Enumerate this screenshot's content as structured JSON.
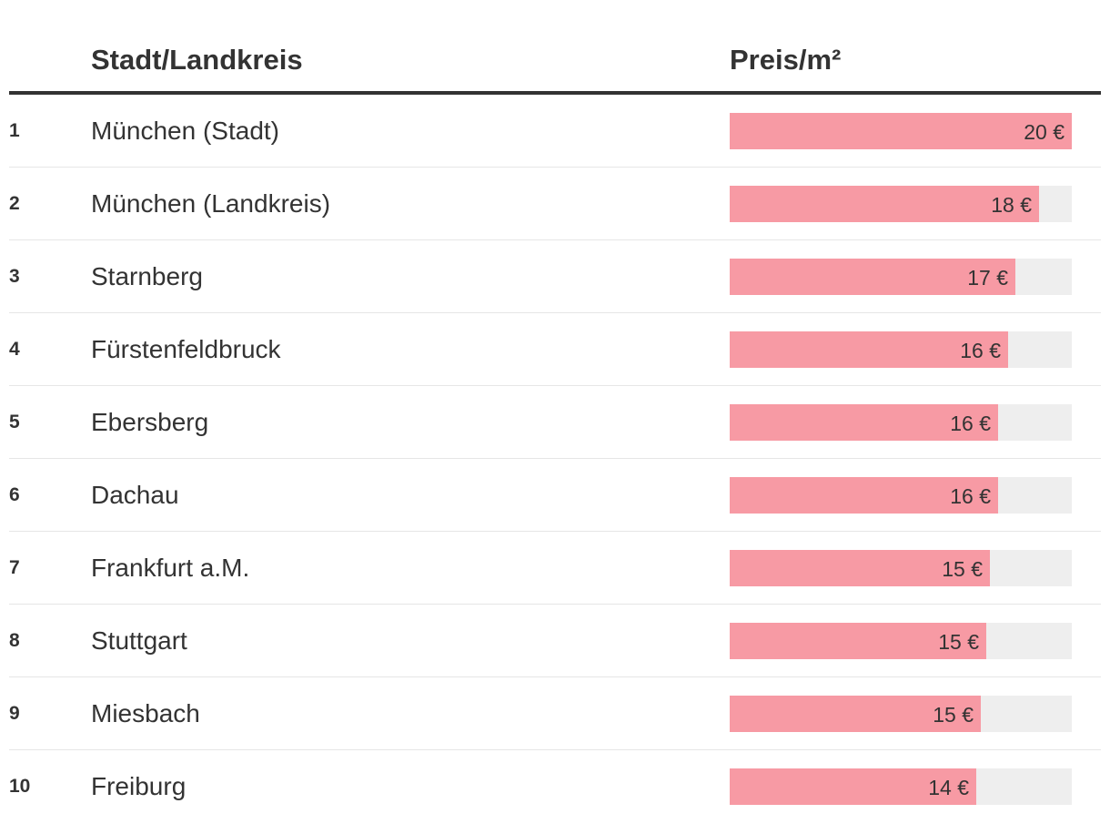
{
  "header": {
    "col_name": "Stadt/Landkreis",
    "col_price": "Preis/m²"
  },
  "colors": {
    "bar": "#f79aa4",
    "track": "#eeeeee",
    "text": "#333333",
    "rule": "#333333"
  },
  "chart_data": {
    "type": "bar",
    "orientation": "horizontal",
    "xlim": [
      0,
      20
    ],
    "categories": [
      "München (Stadt)",
      "München (Landkreis)",
      "Starnberg",
      "Fürstenfeldbruck",
      "Ebersberg",
      "Dachau",
      "Frankfurt a.M.",
      "Stuttgart",
      "Miesbach",
      "Freiburg"
    ],
    "ranks": [
      "1",
      "2",
      "3",
      "4",
      "5",
      "6",
      "7",
      "8",
      "9",
      "10"
    ],
    "values": [
      20,
      18.1,
      16.7,
      16.3,
      15.7,
      15.7,
      15.2,
      15.0,
      14.7,
      14.4
    ],
    "value_labels": [
      "20 €",
      "18 €",
      "17 €",
      "16 €",
      "16 €",
      "16 €",
      "15 €",
      "15 €",
      "15 €",
      "14 €"
    ]
  }
}
